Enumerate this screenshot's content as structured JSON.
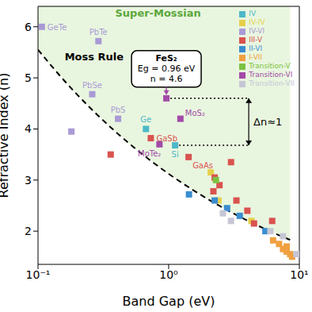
{
  "chart_data": {
    "type": "scatter",
    "xlabel": "Band Gap (eV)",
    "ylabel": "Refractive Index (n)",
    "log": "x",
    "grid": false,
    "legend": "upper right",
    "marker": "square",
    "xlim": [
      0.1,
      10
    ],
    "xticks": [
      {
        "value": 0.1,
        "label": "10⁻¹"
      },
      {
        "value": 1,
        "label": "10⁰"
      },
      {
        "value": 10,
        "label": "10¹"
      }
    ],
    "ylim": [
      1.35,
      6.4
    ],
    "yticks": [
      2,
      3,
      4,
      5,
      6
    ],
    "series": [
      {
        "name": "IV",
        "color": "#4db8c8",
        "x": [
          0.67,
          1.12
        ],
        "values": [
          4.0,
          3.68
        ],
        "labels": [
          "Ge",
          "Si"
        ]
      },
      {
        "name": "IV-IV",
        "color": "#e6d04a",
        "x": [
          2.1,
          2.4,
          4.3
        ],
        "values": [
          3.15,
          2.6,
          2.2
        ],
        "labels": [
          null,
          null,
          null
        ]
      },
      {
        "name": "IV-VI",
        "color": "#a99ad6",
        "x": [
          0.107,
          0.29,
          0.26,
          0.41,
          0.18
        ],
        "values": [
          6.0,
          5.72,
          4.68,
          4.2,
          3.95
        ],
        "labels": [
          "GeTe",
          "PbTe",
          "PbSe",
          "PbS",
          null
        ]
      },
      {
        "name": "III-V",
        "color": "#d9534f",
        "x": [
          0.36,
          0.73,
          1.42,
          2.2,
          2.25,
          2.45,
          3.0,
          3.3,
          4.0,
          4.5,
          6.2
        ],
        "values": [
          3.5,
          3.82,
          3.45,
          2.78,
          3.05,
          2.9,
          3.35,
          2.6,
          2.4,
          2.15,
          2.2
        ],
        "labels": [
          null,
          "GaSb",
          "GaAs",
          null,
          null,
          null,
          null,
          null,
          null,
          null,
          null
        ]
      },
      {
        "name": "II-VI",
        "color": "#3a8dd0",
        "x": [
          1.43,
          2.25,
          2.8,
          3.5,
          5.5
        ],
        "values": [
          2.72,
          2.6,
          2.45,
          2.3,
          2.0
        ],
        "labels": [
          null,
          null,
          null,
          null,
          null
        ]
      },
      {
        "name": "I-VII",
        "color": "#f0a040",
        "x": [
          6.3,
          7.0,
          7.5,
          8.0,
          8.0,
          8.5,
          8.8
        ],
        "values": [
          1.82,
          1.75,
          1.65,
          1.7,
          1.6,
          1.55,
          1.5
        ],
        "labels": [
          null,
          null,
          null,
          null,
          null,
          null,
          null
        ]
      },
      {
        "name": "Transition-V",
        "color": "#7cc242",
        "x": [
          2.3
        ],
        "values": [
          3.0
        ],
        "labels": [
          null
        ]
      },
      {
        "name": "Transition-VI",
        "color": "#a24aa8",
        "x": [
          0.96,
          1.23,
          0.85
        ],
        "values": [
          4.6,
          4.2,
          3.7
        ],
        "labels": [
          null,
          "MoS₂",
          "MoTe₂"
        ]
      },
      {
        "name": "Transition-VII",
        "color": "#c6c6d6",
        "x": [
          2.6,
          3.0,
          6.0,
          7.5,
          9.5
        ],
        "values": [
          2.35,
          2.2,
          2.0,
          1.9,
          1.55
        ],
        "labels": [
          null,
          null,
          null,
          null,
          null
        ]
      }
    ],
    "moss_rule": {
      "x": [
        0.1,
        0.15,
        0.2,
        0.3,
        0.5,
        0.7,
        1,
        1.5,
        2,
        3,
        5,
        7,
        8.5
      ],
      "values": [
        5.552,
        5.017,
        4.669,
        4.219,
        3.713,
        3.413,
        3.122,
        2.821,
        2.625,
        2.372,
        2.088,
        1.919,
        1.829
      ],
      "line_style": "dashed",
      "color": "#000000"
    },
    "region": {
      "text": "Super-Mossian",
      "color": "#e9f6df",
      "x": 0.83,
      "y": 6.2
    },
    "annotations": [
      {
        "text": "Moss Rule",
        "x": 0.16,
        "y": 5.35
      }
    ],
    "callout": {
      "text": [
        "FeS₂",
        "Eg = 0.96 eV",
        "n = 4.6"
      ],
      "x": 0.96,
      "y": 4.6
    },
    "delta": {
      "text": "Δn≈1",
      "x": 4.1,
      "y": [
        3.68,
        4.6
      ],
      "from_x": [
        1.12,
        0.96
      ],
      "line_style": "dotted"
    }
  }
}
